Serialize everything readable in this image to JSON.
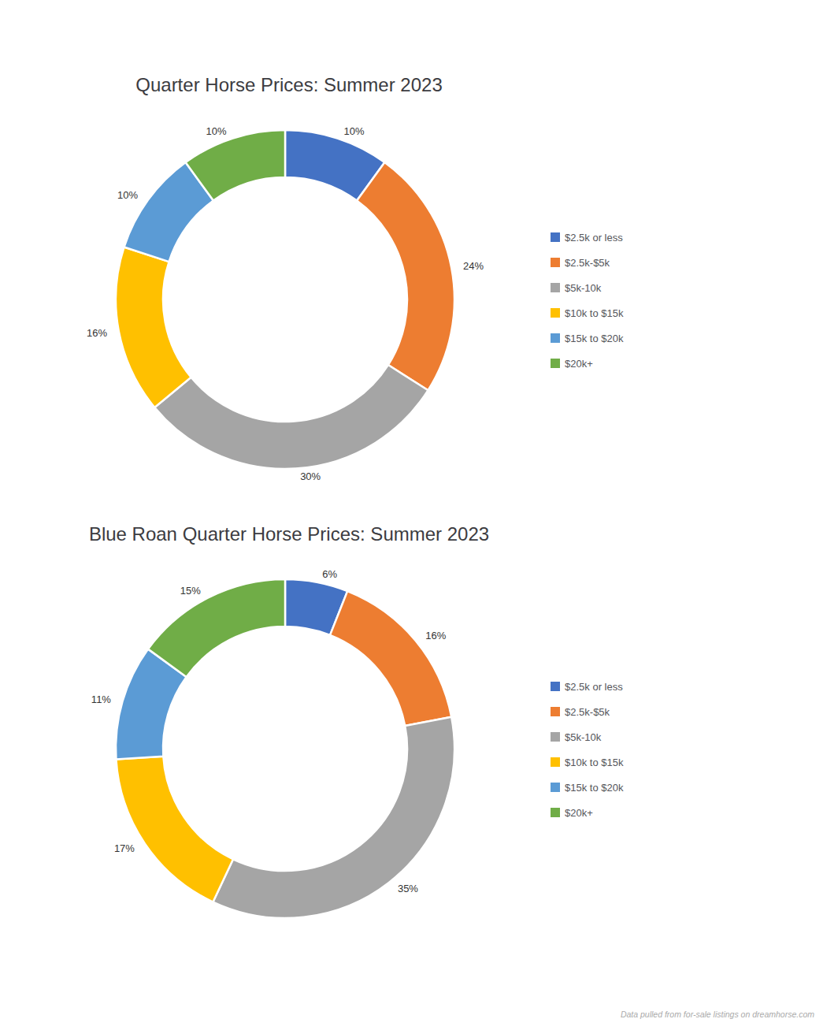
{
  "chart_data": [
    {
      "type": "donut",
      "title": "Quarter Horse Prices: Summer 2023",
      "categories": [
        "$2.5k or less",
        "$2.5k-$5k",
        "$5k-10k",
        "$10k to $15k",
        "$15k to $20k",
        "$20k+"
      ],
      "values": [
        10,
        24,
        30,
        16,
        10,
        10
      ],
      "value_labels": [
        "10%",
        "24%",
        "30%",
        "16%",
        "10%",
        "10%"
      ],
      "colors": [
        "#4472C4",
        "#ED7D31",
        "#A5A5A5",
        "#FFC000",
        "#5B9BD5",
        "#70AD47"
      ],
      "data_labels": true,
      "legend": "right"
    },
    {
      "type": "donut",
      "title": "Blue Roan Quarter Horse Prices: Summer 2023",
      "categories": [
        "$2.5k or less",
        "$2.5k-$5k",
        "$5k-10k",
        "$10k to $15k",
        "$15k to $20k",
        "$20k+"
      ],
      "values": [
        6,
        16,
        35,
        17,
        11,
        15
      ],
      "value_labels": [
        "6%",
        "16%",
        "35%",
        "17%",
        "11%",
        "15%"
      ],
      "colors": [
        "#4472C4",
        "#ED7D31",
        "#A5A5A5",
        "#FFC000",
        "#5B9BD5",
        "#70AD47"
      ],
      "data_labels": true,
      "legend": "right",
      "annotations": [
        "Data pulled from for-sale listings on dreamhorse.com"
      ]
    }
  ]
}
